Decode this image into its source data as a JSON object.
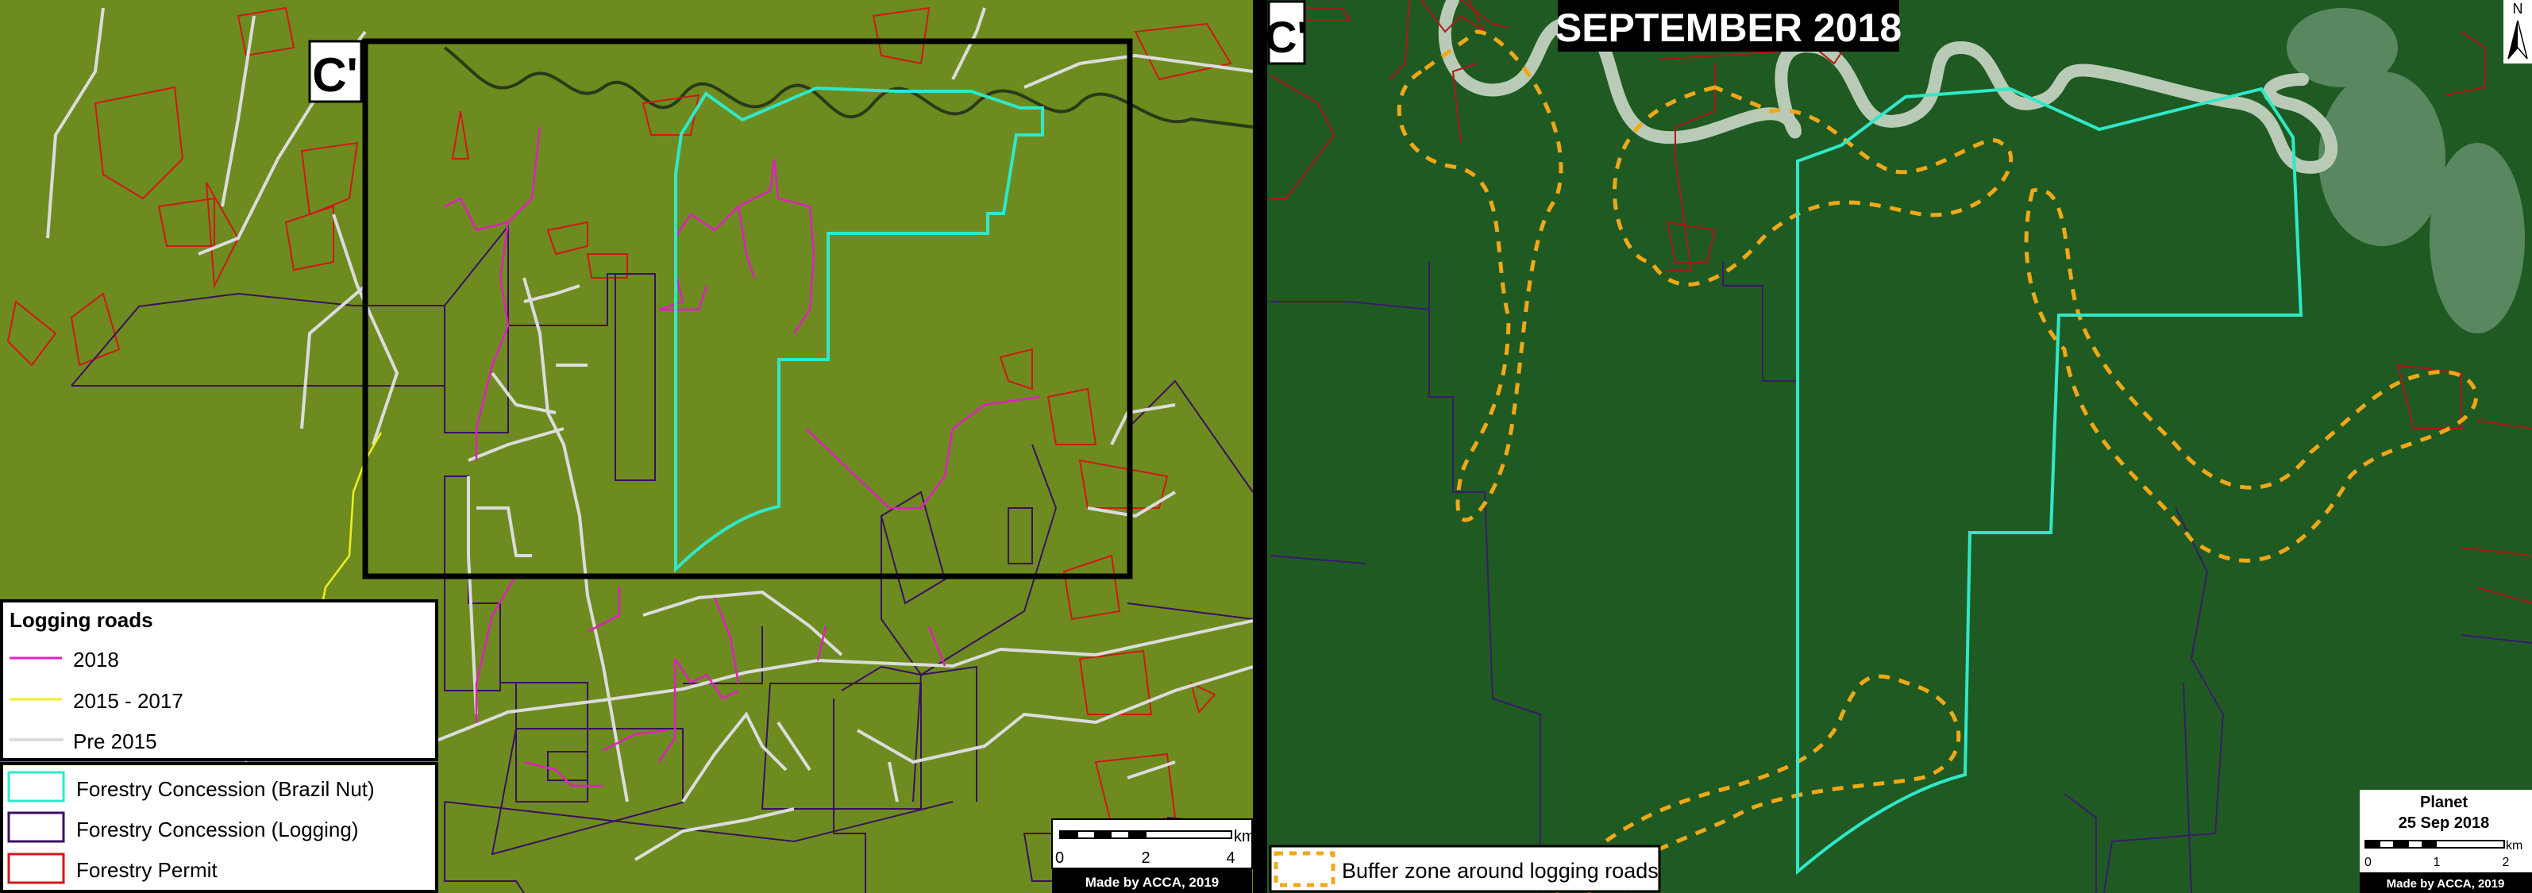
{
  "left_panel": {
    "label": "C'",
    "legend_roads": {
      "title": "Logging roads",
      "items": [
        {
          "label": "2018",
          "color": "#e020c0"
        },
        {
          "label": "2015 - 2017",
          "color": "#f0f020"
        },
        {
          "label": "Pre 2015",
          "color": "#dcdcdc"
        }
      ]
    },
    "legend_areas": {
      "items": [
        {
          "label": "Forestry Concession (Brazil Nut)",
          "color": "#30e8c8"
        },
        {
          "label": "Forestry Concession (Logging)",
          "color": "#3a1060"
        },
        {
          "label": "Forestry Permit",
          "color": "#d01818"
        }
      ]
    },
    "scale": {
      "unit": "km",
      "ticks": [
        "0",
        "2",
        "4"
      ]
    },
    "credit": "Made by ACCA, 2019"
  },
  "right_panel": {
    "label": "C'",
    "title": "SEPTEMBER 2018",
    "north": "N",
    "legend": {
      "label": "Buffer zone around logging roads",
      "color": "#f0a818"
    },
    "source": "Planet",
    "date": "25 Sep 2018",
    "scale": {
      "unit": "km",
      "ticks": [
        "0",
        "1",
        "2"
      ]
    },
    "credit": "Made by ACCA, 2019"
  },
  "colors": {
    "left_background": "#6e8b1f",
    "right_background": "#1f5a22"
  }
}
